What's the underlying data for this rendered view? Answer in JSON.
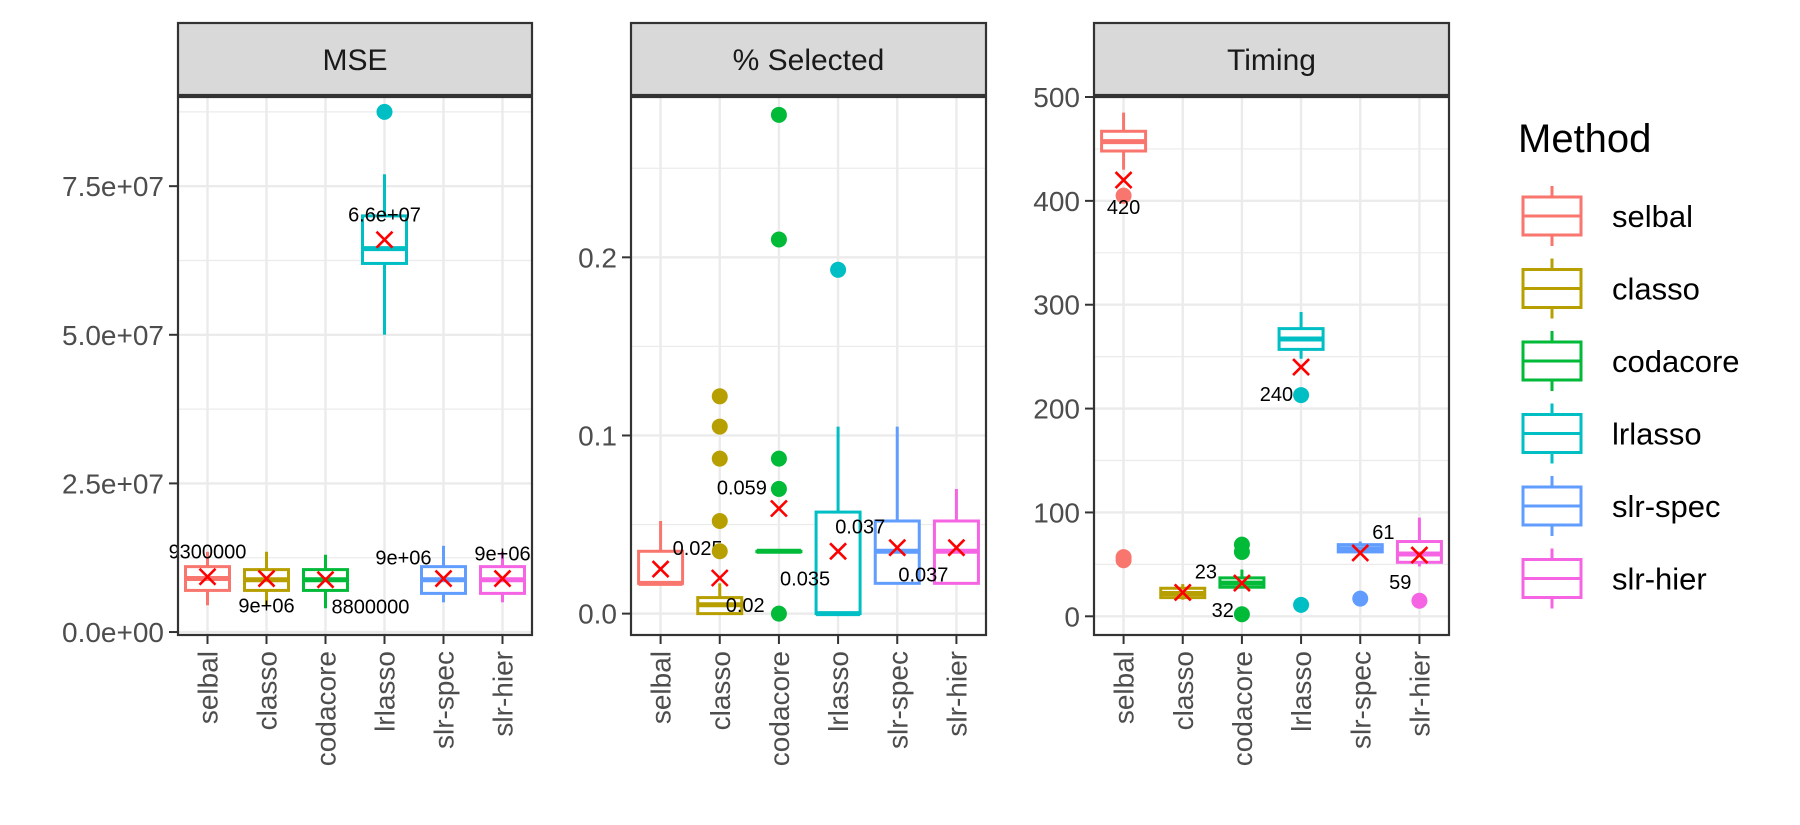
{
  "methods": [
    "selbal",
    "classo",
    "codacore",
    "lrlasso",
    "slr-spec",
    "slr-hier"
  ],
  "colors": {
    "selbal": "#F8766D",
    "classo": "#B79F00",
    "codacore": "#00BA38",
    "lrlasso": "#00BFC4",
    "slr-spec": "#619CFF",
    "slr-hier": "#F564E3",
    "mean_marker": "#FF0000",
    "strip_fill": "#D9D9D9",
    "grid": "#EBEBEB"
  },
  "legend": {
    "title": "Method",
    "items": [
      "selbal",
      "classo",
      "codacore",
      "lrlasso",
      "slr-spec",
      "slr-hier"
    ]
  },
  "chart_data": [
    {
      "type": "box",
      "title": "MSE",
      "categories": [
        "selbal",
        "classo",
        "codacore",
        "lrlasso",
        "slr-spec",
        "slr-hier"
      ],
      "ylim": [
        -500000,
        90000000
      ],
      "yticks": [
        0,
        25000000,
        50000000,
        75000000
      ],
      "ytick_labels": [
        "0.0e+00",
        "2.5e+07",
        "5.0e+07",
        "7.5e+07"
      ],
      "grid": true,
      "boxes": [
        {
          "method": "selbal",
          "lower_whisker": 4500000,
          "q1": 7000000,
          "median": 9000000,
          "q3": 11000000,
          "upper_whisker": 13500000,
          "outliers": [],
          "mean": 9300000,
          "mean_label": "9300000",
          "label_pos": "above"
        },
        {
          "method": "classo",
          "lower_whisker": 4500000,
          "q1": 7000000,
          "median": 8800000,
          "q3": 10500000,
          "upper_whisker": 13500000,
          "outliers": [],
          "mean": 9000000,
          "mean_label": "9e+06",
          "label_pos": "below"
        },
        {
          "method": "codacore",
          "lower_whisker": 4000000,
          "q1": 7000000,
          "median": 8800000,
          "q3": 10500000,
          "upper_whisker": 13000000,
          "outliers": [],
          "mean": 8800000,
          "mean_label": "8800000",
          "label_pos": "below-right"
        },
        {
          "method": "lrlasso",
          "lower_whisker": 50000000,
          "q1": 62000000,
          "median": 64500000,
          "q3": 70000000,
          "upper_whisker": 77000000,
          "outliers": [
            87500000
          ],
          "mean": 66000000,
          "mean_label": "6.6e+07",
          "label_pos": "above"
        },
        {
          "method": "slr-spec",
          "lower_whisker": 5000000,
          "q1": 6500000,
          "median": 8800000,
          "q3": 11000000,
          "upper_whisker": 14500000,
          "outliers": [],
          "mean": 9000000,
          "mean_label": "9e+06",
          "label_pos": "above-left"
        },
        {
          "method": "slr-hier",
          "lower_whisker": 5000000,
          "q1": 6500000,
          "median": 8800000,
          "q3": 11000000,
          "upper_whisker": 13500000,
          "outliers": [],
          "mean": 9000000,
          "mean_label": "9e+06",
          "label_pos": "above"
        }
      ]
    },
    {
      "type": "box",
      "title": "% Selected",
      "categories": [
        "selbal",
        "classo",
        "codacore",
        "lrlasso",
        "slr-spec",
        "slr-hier"
      ],
      "ylim": [
        -0.012,
        0.29
      ],
      "yticks": [
        0.0,
        0.1,
        0.2
      ],
      "ytick_labels": [
        "0.0",
        "0.1",
        "0.2"
      ],
      "grid": true,
      "boxes": [
        {
          "method": "selbal",
          "lower_whisker": 0.017,
          "q1": 0.017,
          "median": 0.017,
          "q3": 0.035,
          "upper_whisker": 0.052,
          "outliers": [],
          "mean": 0.025,
          "mean_label": "0.025",
          "label_pos": "above-right"
        },
        {
          "method": "classo",
          "lower_whisker": 0.0,
          "q1": 0.0,
          "median": 0.005,
          "q3": 0.009,
          "upper_whisker": 0.017,
          "outliers": [
            0.035,
            0.052,
            0.087,
            0.105,
            0.122
          ],
          "mean": 0.02,
          "mean_label": "0.02",
          "label_pos": "below-right"
        },
        {
          "method": "codacore",
          "lower_whisker": 0.035,
          "q1": 0.035,
          "median": 0.035,
          "q3": 0.035,
          "upper_whisker": 0.035,
          "outliers": [
            0.0,
            0.07,
            0.087,
            0.21,
            0.28
          ],
          "mean": 0.059,
          "mean_label": "0.059",
          "label_pos": "above-left"
        },
        {
          "method": "lrlasso",
          "lower_whisker": 0.0,
          "q1": 0.0,
          "median": 0.0,
          "q3": 0.057,
          "upper_whisker": 0.105,
          "outliers": [
            0.193
          ],
          "mean": 0.035,
          "mean_label": "0.035",
          "label_pos": "below-left"
        },
        {
          "method": "slr-spec",
          "lower_whisker": 0.017,
          "q1": 0.017,
          "median": 0.035,
          "q3": 0.052,
          "upper_whisker": 0.105,
          "outliers": [],
          "mean": 0.037,
          "mean_label": "0.037",
          "label_pos": "above-left"
        },
        {
          "method": "slr-hier",
          "lower_whisker": 0.017,
          "q1": 0.017,
          "median": 0.035,
          "q3": 0.052,
          "upper_whisker": 0.07,
          "outliers": [],
          "mean": 0.037,
          "mean_label": "0.037",
          "label_pos": "below-left"
        }
      ]
    },
    {
      "type": "box",
      "title": "Timing",
      "categories": [
        "selbal",
        "classo",
        "codacore",
        "lrlasso",
        "slr-spec",
        "slr-hier"
      ],
      "ylim": [
        -18,
        500
      ],
      "yticks": [
        0,
        100,
        200,
        300,
        400,
        500
      ],
      "ytick_labels": [
        "0",
        "100",
        "200",
        "300",
        "400",
        "500"
      ],
      "grid": true,
      "boxes": [
        {
          "method": "selbal",
          "lower_whisker": 430,
          "q1": 448,
          "median": 457,
          "q3": 467,
          "upper_whisker": 485,
          "outliers": [
            54,
            57,
            405
          ],
          "mean": 420,
          "mean_label": "420",
          "label_pos": "below"
        },
        {
          "method": "classo",
          "lower_whisker": 16,
          "q1": 18,
          "median": 22,
          "q3": 27,
          "upper_whisker": 31,
          "outliers": [],
          "mean": 23,
          "mean_label": "23",
          "label_pos": "above-right"
        },
        {
          "method": "codacore",
          "lower_whisker": 28,
          "q1": 28,
          "median": 32,
          "q3": 37,
          "upper_whisker": 45,
          "outliers": [
            2,
            62,
            69
          ],
          "mean": 32,
          "mean_label": "32",
          "label_pos": "below-left"
        },
        {
          "method": "lrlasso",
          "lower_whisker": 248,
          "q1": 257,
          "median": 267,
          "q3": 277,
          "upper_whisker": 293,
          "outliers": [
            11,
            213
          ],
          "mean": 240,
          "mean_label": "240",
          "label_pos": "below-left"
        },
        {
          "method": "slr-spec",
          "lower_whisker": 59,
          "q1": 62,
          "median": 65,
          "q3": 69,
          "upper_whisker": 72,
          "outliers": [
            17
          ],
          "mean": 61,
          "mean_label": "61",
          "label_pos": "above-right"
        },
        {
          "method": "slr-hier",
          "lower_whisker": 48,
          "q1": 52,
          "median": 60,
          "q3": 72,
          "upper_whisker": 95,
          "outliers": [
            15
          ],
          "mean": 59,
          "mean_label": "59",
          "label_pos": "below-left"
        }
      ]
    }
  ]
}
